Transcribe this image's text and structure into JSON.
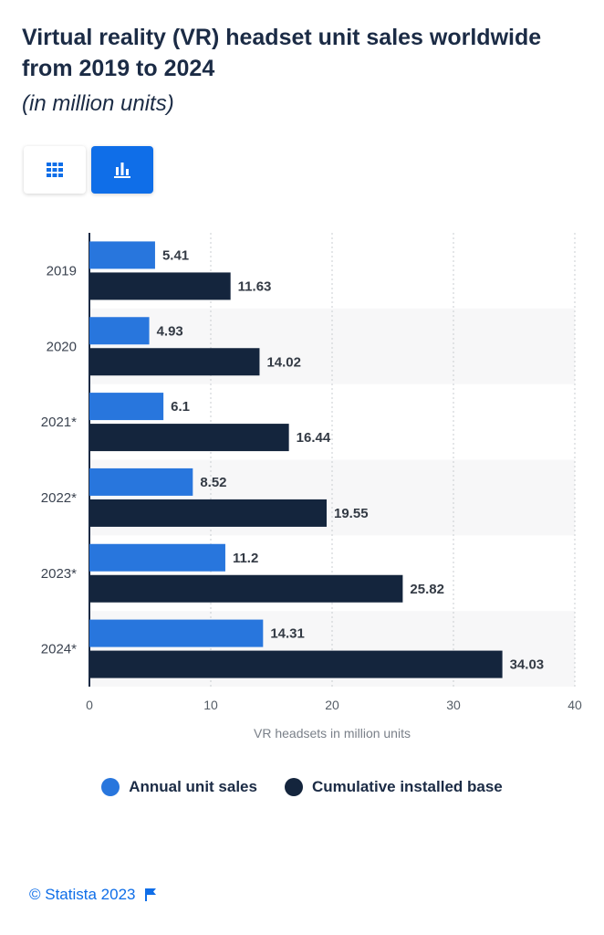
{
  "header": {
    "title": "Virtual reality (VR) headset unit sales worldwide from 2019 to 2024",
    "subtitle": "(in million units)"
  },
  "toggle": {
    "table_icon": "grid-icon",
    "chart_icon": "bar-chart-icon",
    "active": "chart"
  },
  "chart_data": {
    "type": "bar",
    "orientation": "horizontal",
    "categories": [
      "2019",
      "2020",
      "2021*",
      "2022*",
      "2023*",
      "2024*"
    ],
    "series": [
      {
        "name": "Annual unit sales",
        "color": "#2876dd",
        "values": [
          5.41,
          4.93,
          6.1,
          8.52,
          11.2,
          14.31
        ]
      },
      {
        "name": "Cumulative installed base",
        "color": "#14253d",
        "values": [
          11.63,
          14.02,
          16.44,
          19.55,
          25.82,
          34.03
        ]
      }
    ],
    "xlabel": "VR headsets in million units",
    "xlim": [
      0,
      40
    ],
    "xticks": [
      0,
      10,
      20,
      30,
      40
    ],
    "grid": true,
    "legend_position": "bottom"
  },
  "footer": {
    "copyright": "© Statista 2023",
    "flag_icon": "flag-icon"
  }
}
